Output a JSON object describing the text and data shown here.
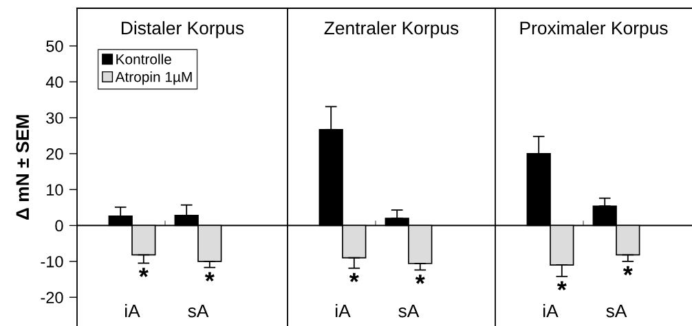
{
  "chart_data": [
    {
      "type": "bar",
      "title": "Distaler Korpus",
      "ylabel": "Δ mN ± SEM",
      "categories": [
        "iA",
        "sA"
      ],
      "ylim": [
        -28,
        60.5
      ],
      "yticks": [
        -20,
        -10,
        0,
        10,
        20,
        30,
        40,
        50
      ],
      "legend": "top left",
      "ref_lines": [
        {
          "axis": "y",
          "value": 0,
          "color": "#000000"
        }
      ],
      "series": [
        {
          "name": "Kontrolle",
          "color": "#000000",
          "values": [
            2.6,
            2.8
          ],
          "errors": [
            [
              2.6,
              5.1
            ],
            [
              2.8,
              5.7
            ]
          ]
        },
        {
          "name": "Atropin 1µM",
          "color": "#dcdcdc",
          "values": [
            -8.2,
            -10.0
          ],
          "errors": [
            [
              -10.5,
              -8.2
            ],
            [
              -11.7,
              -10.0
            ]
          ]
        }
      ],
      "annotations": [
        "*",
        "*"
      ]
    },
    {
      "type": "bar",
      "title": "Zentraler Korpus",
      "categories": [
        "iA",
        "sA"
      ],
      "ylim": [
        -28,
        60.5
      ],
      "tick_labels": "x",
      "ref_lines": [
        {
          "axis": "y",
          "value": 0,
          "color": "#000000"
        }
      ],
      "series": [
        {
          "color": "#000000",
          "values": [
            26.7,
            2.0
          ],
          "errors": [
            [
              26.7,
              33.1
            ],
            [
              2.0,
              4.3
            ]
          ]
        },
        {
          "color": "#dcdcdc",
          "values": [
            -9.0,
            -10.6
          ],
          "errors": [
            [
              -11.9,
              -9.0
            ],
            [
              -12.4,
              -10.6
            ]
          ]
        }
      ],
      "annotations": [
        "*",
        "*"
      ]
    },
    {
      "type": "bar",
      "title": "Proximaler Korpus",
      "categories": [
        "iA",
        "sA"
      ],
      "ylim": [
        -28,
        60.5
      ],
      "tick_labels": "x",
      "ref_lines": [
        {
          "axis": "y",
          "value": 0,
          "color": "#000000"
        }
      ],
      "series": [
        {
          "color": "#000000",
          "values": [
            20.0,
            5.4
          ],
          "errors": [
            [
              20.0,
              24.8
            ],
            [
              5.4,
              7.6
            ]
          ]
        },
        {
          "color": "#dcdcdc",
          "values": [
            -11.0,
            -8.2
          ],
          "errors": [
            [
              -14.2,
              -11.0
            ],
            [
              -10.0,
              -8.2
            ]
          ]
        }
      ],
      "annotations": [
        "*",
        "*"
      ]
    }
  ]
}
